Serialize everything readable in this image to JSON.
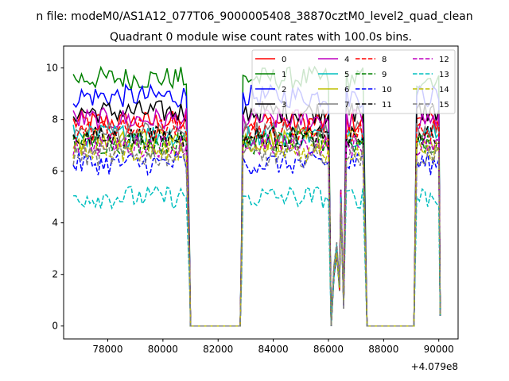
{
  "suptitle": "n file: modeM0/AS1A12_077T06_9000005408_38870cztM0_level2_quad_clean",
  "chart_data": {
    "type": "line",
    "title": "Quadrant 0 module wise count rates with 100.0s bins.",
    "xlabel": "",
    "ylabel": "",
    "x_offset_label": "+4.079e8",
    "xlim": [
      76400,
      90700
    ],
    "ylim": [
      -0.5,
      10.85
    ],
    "x_ticks": [
      78000,
      80000,
      82000,
      84000,
      86000,
      88000,
      90000
    ],
    "x_tick_labels": [
      "78000",
      "80000",
      "82000",
      "84000",
      "86000",
      "88000",
      "90000"
    ],
    "y_ticks": [
      0,
      2,
      4,
      6,
      8,
      10
    ],
    "y_tick_labels": [
      "0",
      "2",
      "4",
      "6",
      "8",
      "10"
    ],
    "legend_position": "top-right",
    "series": [
      {
        "name": "0",
        "color": "#ff0000",
        "style": "solid",
        "level": 7.9
      },
      {
        "name": "1",
        "color": "#008000",
        "style": "solid",
        "level": 9.6
      },
      {
        "name": "2",
        "color": "#0000ff",
        "style": "solid",
        "level": 8.9
      },
      {
        "name": "3",
        "color": "#000000",
        "style": "solid",
        "level": 8.3
      },
      {
        "name": "4",
        "color": "#bf00bf",
        "style": "solid",
        "level": 8.0
      },
      {
        "name": "5",
        "color": "#00bfbf",
        "style": "solid",
        "level": 7.4
      },
      {
        "name": "6",
        "color": "#bfbf00",
        "style": "solid",
        "level": 7.2
      },
      {
        "name": "7",
        "color": "#808080",
        "style": "solid",
        "level": 7.5
      },
      {
        "name": "8",
        "color": "#ff0000",
        "style": "dashed",
        "level": 7.6
      },
      {
        "name": "9",
        "color": "#008000",
        "style": "dashed",
        "level": 7.1
      },
      {
        "name": "10",
        "color": "#0000ff",
        "style": "dashed",
        "level": 6.3
      },
      {
        "name": "11",
        "color": "#000000",
        "style": "dashed",
        "level": 7.3
      },
      {
        "name": "12",
        "color": "#bf00bf",
        "style": "dashed",
        "level": 7.0
      },
      {
        "name": "13",
        "color": "#00bfbf",
        "style": "dashed",
        "level": 5.0
      },
      {
        "name": "14",
        "color": "#bfbf00",
        "style": "dashed",
        "level": 6.8
      },
      {
        "name": "15",
        "color": "#808080",
        "style": "dashed",
        "level": 6.6
      }
    ]
  }
}
